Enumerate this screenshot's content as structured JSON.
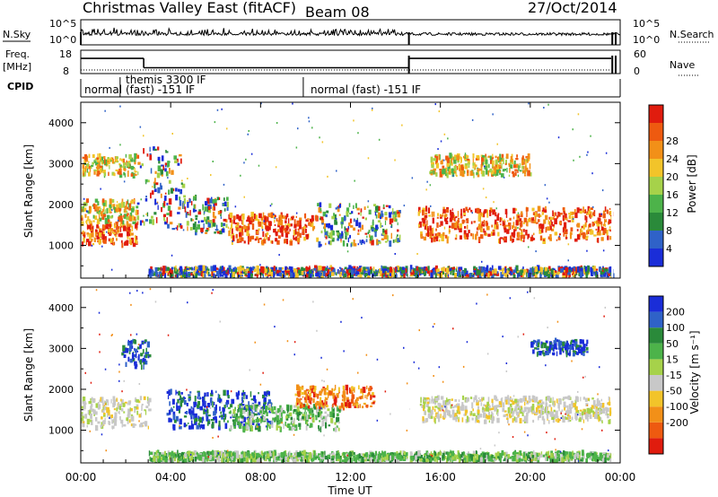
{
  "header": {
    "title": "Christmas Valley East (fitACF)",
    "beam": "Beam 08",
    "date": "27/Oct/2014"
  },
  "strips": {
    "nsky_label": "N.Sky",
    "nsky_ticks": [
      "10^5",
      "10^0"
    ],
    "nsearch_label": "N.Search",
    "nsearch_ticks": [
      "10^5",
      "10^0"
    ],
    "freq_label_1": "Freq.",
    "freq_label_2": "[MHz]",
    "freq_ticks": [
      "18",
      "8"
    ],
    "nave_label": "Nave",
    "nave_ticks": [
      "60",
      "0"
    ],
    "cpid_label": "CPID",
    "cpid_segments": [
      {
        "start_h": 0.0,
        "end_h": 1.75,
        "label": "normal"
      },
      {
        "start_h": 1.75,
        "end_h": 9.9,
        "label": "themis 3300 IF (fast) -151 IF"
      },
      {
        "start_h": 9.9,
        "end_h": 24.0,
        "label": "normal (fast) -151 IF"
      }
    ],
    "cpid_line1": "themis 3300 IF",
    "cpid_line2": "(fast) -151 IF",
    "cpid_normal": "normal",
    "cpid_normal_fast": "normal (fast) -151 IF",
    "freq_series": [
      {
        "start_h": 0.0,
        "end_h": 2.8,
        "value_mhz": 14.5
      },
      {
        "start_h": 2.8,
        "end_h": 14.6,
        "value_mhz": 10.5
      },
      {
        "start_h": 14.6,
        "end_h": 23.6,
        "value_mhz": 14.5
      }
    ],
    "data_gaps_h": [
      14.6,
      23.65,
      23.8
    ]
  },
  "chart_data": [
    {
      "type": "heatmap",
      "panel": "power",
      "ylabel": "Slant Range [km]",
      "yticks": [
        "1000",
        "2000",
        "3000",
        "4000"
      ],
      "ylim": [
        200,
        4500
      ],
      "xlim": [
        0,
        24
      ],
      "colorbar_label": "Power [dB]",
      "colorbar_ticks": [
        "4",
        "8",
        "12",
        "16",
        "20",
        "24",
        "28"
      ],
      "colorbar_colors": [
        "#1a2dd8",
        "#2f62c8",
        "#2a8a3a",
        "#4db34a",
        "#a6d24a",
        "#f2c42a",
        "#f29018",
        "#ee5a10",
        "#e01c0e"
      ],
      "echo_regions": [
        {
          "t0": 0.0,
          "t1": 2.5,
          "r0": 1000,
          "r1": 1550,
          "level": "high"
        },
        {
          "t0": 0.0,
          "t1": 2.5,
          "r0": 1550,
          "r1": 2100,
          "level": "mid"
        },
        {
          "t0": 0.0,
          "t1": 2.5,
          "r0": 2700,
          "r1": 3200,
          "level": "mid"
        },
        {
          "t0": 2.5,
          "t1": 4.5,
          "r0": 1400,
          "r1": 3400,
          "level": "mixed"
        },
        {
          "t0": 4.5,
          "t1": 6.5,
          "r0": 1300,
          "r1": 2200,
          "level": "mixed"
        },
        {
          "t0": 6.5,
          "t1": 10.5,
          "r0": 1050,
          "r1": 1750,
          "level": "high"
        },
        {
          "t0": 10.5,
          "t1": 14.2,
          "r0": 1000,
          "r1": 2000,
          "level": "mixed"
        },
        {
          "t0": 15.0,
          "t1": 23.6,
          "r0": 1100,
          "r1": 1900,
          "level": "high"
        },
        {
          "t0": 15.5,
          "t1": 20.0,
          "r0": 2700,
          "r1": 3200,
          "level": "mid"
        },
        {
          "t0": 3.0,
          "t1": 23.6,
          "r0": 250,
          "r1": 450,
          "level": "low"
        }
      ]
    },
    {
      "type": "heatmap",
      "panel": "velocity",
      "ylabel": "Slant Range [km]",
      "yticks": [
        "1000",
        "2000",
        "3000",
        "4000"
      ],
      "ylim": [
        200,
        4500
      ],
      "xlim": [
        0,
        24
      ],
      "xticks": [
        "00:00",
        "04:00",
        "08:00",
        "12:00",
        "16:00",
        "20:00",
        "00:00"
      ],
      "xlabel": "Time UT",
      "colorbar_label": "Velocity [m s⁻¹]",
      "colorbar_ticks": [
        "200",
        "100",
        "50",
        "15",
        "-15",
        "-50",
        "-100",
        "-200"
      ],
      "colorbar_colors": [
        "#1a2dd8",
        "#2f62c8",
        "#2a8a3a",
        "#4db34a",
        "#a6d24a",
        "#c8c8c8",
        "#f2c42a",
        "#f29018",
        "#ee5a10",
        "#e01c0e"
      ],
      "echo_regions": [
        {
          "t0": 0.0,
          "t1": 3.0,
          "r0": 1050,
          "r1": 1800,
          "level": "gray"
        },
        {
          "t0": 1.8,
          "t1": 3.0,
          "r0": 2500,
          "r1": 3200,
          "level": "blue"
        },
        {
          "t0": 3.8,
          "t1": 8.5,
          "r0": 1050,
          "r1": 1950,
          "level": "blue"
        },
        {
          "t0": 6.5,
          "t1": 11.5,
          "r0": 1000,
          "r1": 1600,
          "level": "green"
        },
        {
          "t0": 9.5,
          "t1": 13.0,
          "r0": 1550,
          "r1": 2050,
          "level": "orange"
        },
        {
          "t0": 15.0,
          "t1": 23.6,
          "r0": 1200,
          "r1": 1800,
          "level": "gray"
        },
        {
          "t0": 20.0,
          "t1": 22.5,
          "r0": 2850,
          "r1": 3200,
          "level": "blue"
        },
        {
          "t0": 3.0,
          "t1": 23.6,
          "r0": 250,
          "r1": 450,
          "level": "green"
        }
      ]
    }
  ]
}
